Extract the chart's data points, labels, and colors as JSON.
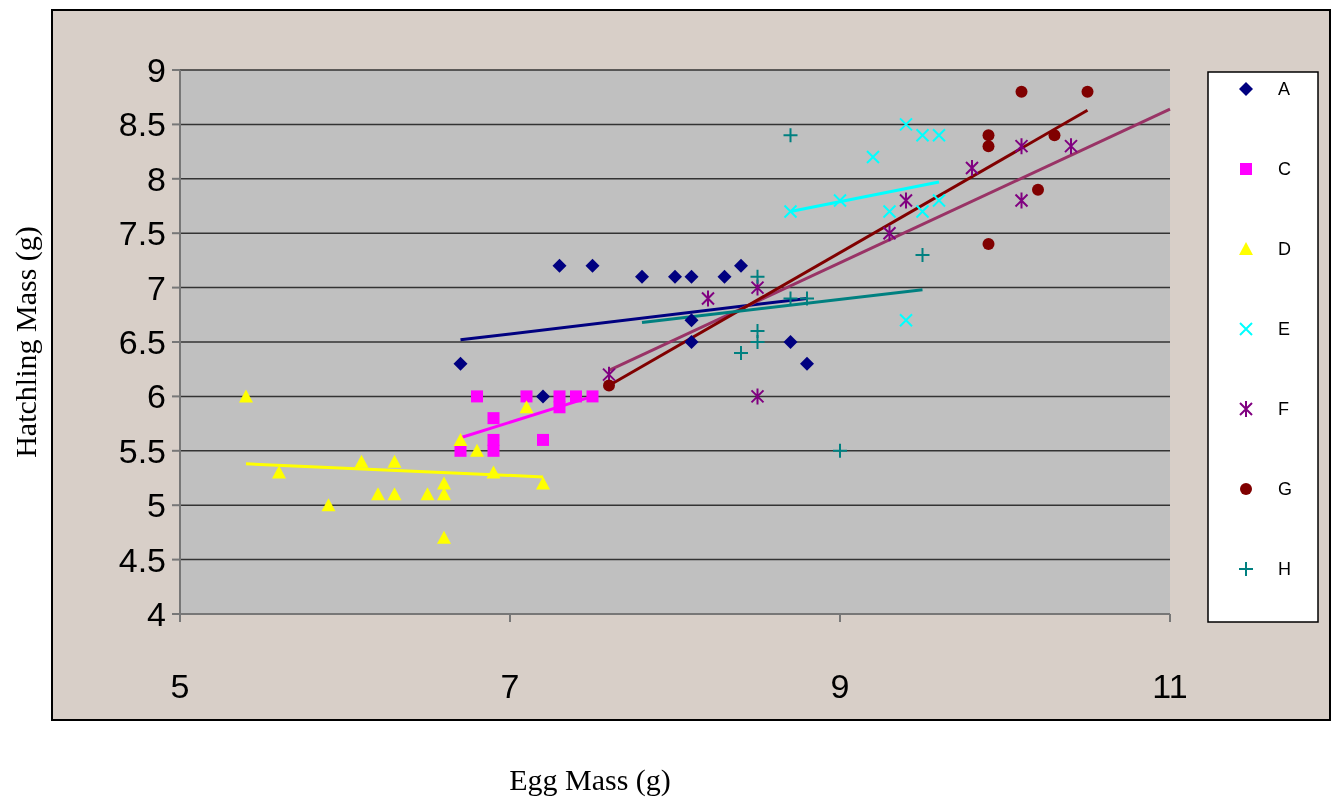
{
  "chart_data": {
    "type": "scatter",
    "xlabel": "Egg Mass (g)",
    "ylabel": "Hatchling Mass (g)",
    "xlim": [
      5,
      11
    ],
    "xticks": [
      5,
      7,
      9,
      11
    ],
    "ylim": [
      4,
      9
    ],
    "yticks": [
      4,
      4.5,
      5,
      5.5,
      6,
      6.5,
      7,
      7.5,
      8,
      8.5,
      9
    ],
    "grid": "y",
    "legend": "right",
    "series": [
      {
        "name": "A",
        "color": "#000080",
        "marker": "diamond",
        "x": [
          6.7,
          7.2,
          7.3,
          7.5,
          7.8,
          8.0,
          8.1,
          8.3,
          8.4,
          8.1,
          8.1,
          8.7,
          8.8
        ],
        "values": [
          6.3,
          6.0,
          7.2,
          7.2,
          7.1,
          7.1,
          7.1,
          7.1,
          7.2,
          6.7,
          6.5,
          6.5,
          6.3
        ]
      },
      {
        "name": "C",
        "color": "#ff00ff",
        "marker": "square",
        "x": [
          6.7,
          6.8,
          6.9,
          6.9,
          6.9,
          7.1,
          7.2,
          7.3,
          7.3,
          7.4,
          7.5
        ],
        "values": [
          5.5,
          6.0,
          5.8,
          5.6,
          5.5,
          6.0,
          5.6,
          6.0,
          5.9,
          6.0,
          6.0
        ]
      },
      {
        "name": "D",
        "color": "#ffff00",
        "marker": "triangle",
        "x": [
          5.4,
          5.6,
          5.9,
          6.1,
          6.2,
          6.3,
          6.3,
          6.5,
          6.6,
          6.6,
          6.6,
          6.7,
          6.8,
          6.9,
          7.1,
          7.2
        ],
        "values": [
          6.0,
          5.3,
          5.0,
          5.4,
          5.1,
          5.4,
          5.1,
          5.1,
          5.2,
          5.1,
          4.7,
          5.6,
          5.5,
          5.3,
          5.9,
          5.2
        ]
      },
      {
        "name": "E",
        "color": "#00ffff",
        "marker": "cross",
        "x": [
          8.7,
          9.0,
          9.2,
          9.3,
          9.4,
          9.5,
          9.6,
          9.5,
          9.6,
          9.4
        ],
        "values": [
          7.7,
          7.8,
          8.2,
          7.7,
          8.5,
          8.4,
          8.4,
          7.7,
          7.8,
          6.7
        ]
      },
      {
        "name": "F",
        "color": "#800080",
        "marker": "cross",
        "x": [
          7.6,
          8.2,
          8.5,
          8.5,
          9.3,
          9.4,
          9.8,
          10.1,
          10.4,
          10.1
        ],
        "values": [
          6.2,
          6.9,
          7.0,
          6.0,
          7.5,
          7.8,
          8.1,
          8.3,
          8.3,
          7.8
        ]
      },
      {
        "name": "G",
        "color": "#800000",
        "marker": "circle",
        "x": [
          7.6,
          9.9,
          9.9,
          9.9,
          10.1,
          10.3,
          10.2,
          10.5
        ],
        "values": [
          6.1,
          8.4,
          8.3,
          7.4,
          8.8,
          8.4,
          7.9,
          8.8
        ]
      },
      {
        "name": "H",
        "color": "#008080",
        "marker": "cross",
        "x": [
          8.7,
          8.5,
          8.7,
          8.8,
          8.5,
          8.5,
          8.4,
          9.5,
          9.0
        ],
        "values": [
          8.4,
          7.1,
          6.9,
          6.9,
          6.6,
          6.5,
          6.4,
          7.3,
          5.5
        ]
      },
      {
        "type": "line",
        "color": "#000080",
        "x": [
          6.7,
          8.8
        ],
        "values": [
          6.52,
          6.9
        ]
      },
      {
        "type": "line",
        "color": "#ff00ff",
        "x": [
          6.7,
          7.5
        ],
        "values": [
          5.62,
          6.0
        ]
      },
      {
        "type": "line",
        "color": "#ffff00",
        "x": [
          5.4,
          7.2
        ],
        "values": [
          5.38,
          5.26
        ]
      },
      {
        "type": "line",
        "color": "#00ffff",
        "x": [
          8.7,
          9.6
        ],
        "values": [
          7.7,
          7.97
        ]
      },
      {
        "type": "line",
        "color": "#993366",
        "x": [
          7.6,
          11
        ],
        "values": [
          6.24,
          8.64
        ]
      },
      {
        "type": "line",
        "color": "#800000",
        "x": [
          7.6,
          10.5
        ],
        "values": [
          6.1,
          8.63
        ]
      },
      {
        "type": "line",
        "color": "#008080",
        "x": [
          7.8,
          9.5
        ],
        "values": [
          6.68,
          6.98
        ]
      }
    ]
  }
}
